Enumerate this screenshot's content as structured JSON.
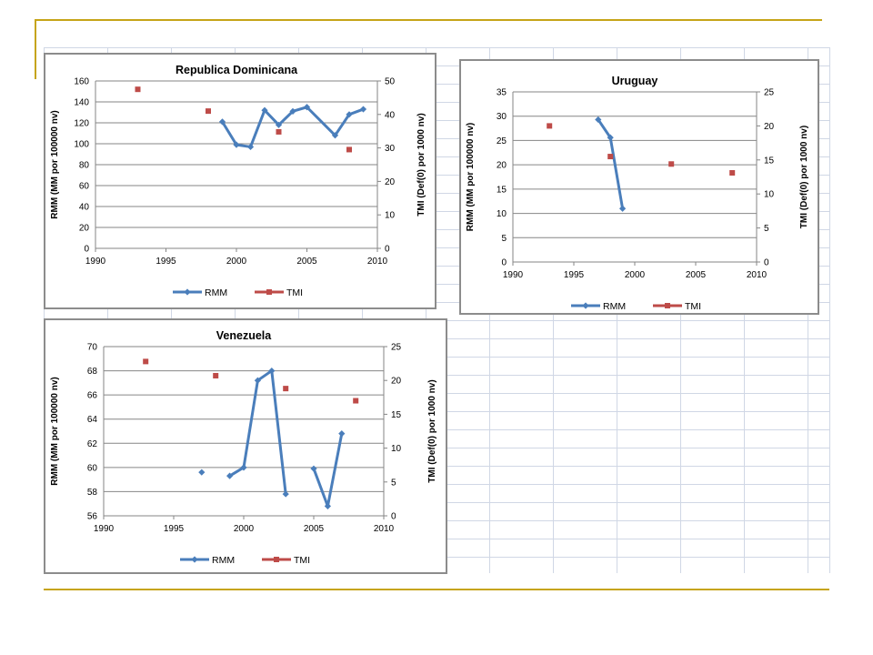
{
  "chart_data": [
    {
      "type": "line",
      "title": "Republica Dominicana",
      "ylabel": "RMM (MM por 100000 nv)",
      "y2label": "TMI (Def(0) por 1000 nv)",
      "xlim": [
        1990,
        2010
      ],
      "xticks": [
        1990,
        1995,
        2000,
        2005,
        2010
      ],
      "ylim": [
        0,
        160
      ],
      "yticks": [
        0,
        20,
        40,
        60,
        80,
        100,
        120,
        140,
        160
      ],
      "y2lim": [
        0,
        50
      ],
      "y2ticks": [
        0,
        10,
        20,
        30,
        40,
        50
      ],
      "legend_position": "bottom",
      "series": [
        {
          "name": "RMM",
          "axis": "left",
          "color": "#4a7ebb",
          "style": "line-diamond",
          "segments": [
            [
              [
                1999,
                121
              ],
              [
                2000,
                99
              ],
              [
                2001,
                97
              ],
              [
                2002,
                132
              ],
              [
                2003,
                118
              ],
              [
                2004,
                131
              ],
              [
                2005,
                135
              ],
              [
                2007,
                108
              ],
              [
                2008,
                128
              ],
              [
                2009,
                133
              ]
            ]
          ]
        },
        {
          "name": "TMI",
          "axis": "right",
          "color": "#be4b48",
          "style": "square-marker",
          "segments": [
            [
              [
                1993,
                47.5
              ]
            ],
            [
              [
                1998,
                41
              ]
            ],
            [
              [
                2003,
                34.8
              ]
            ],
            [
              [
                2008,
                29.5
              ]
            ]
          ]
        }
      ]
    },
    {
      "type": "line",
      "title": "Uruguay",
      "ylabel": "RMM  (MM por 100000 nv)",
      "y2label": "TMI (Def(0) por 1000 nv)",
      "xlim": [
        1990,
        2010
      ],
      "xticks": [
        1990,
        1995,
        2000,
        2005,
        2010
      ],
      "ylim": [
        0,
        35
      ],
      "yticks": [
        0,
        5,
        10,
        15,
        20,
        25,
        30,
        35
      ],
      "y2lim": [
        0,
        25
      ],
      "y2ticks": [
        0,
        5,
        10,
        15,
        20,
        25
      ],
      "legend_position": "bottom",
      "series": [
        {
          "name": "RMM",
          "axis": "left",
          "color": "#4a7ebb",
          "style": "line-diamond",
          "segments": [
            [
              [
                1997,
                29.3
              ],
              [
                1998,
                25.6
              ],
              [
                1999,
                11
              ]
            ]
          ]
        },
        {
          "name": "TMI",
          "axis": "right",
          "color": "#be4b48",
          "style": "square-marker",
          "segments": [
            [
              [
                1993,
                20
              ]
            ],
            [
              [
                1998,
                15.5
              ]
            ],
            [
              [
                2003,
                14.4
              ]
            ],
            [
              [
                2008,
                13.1
              ]
            ]
          ]
        }
      ]
    },
    {
      "type": "line",
      "title": "Venezuela",
      "ylabel": "RMM  (MM por 100000 nv)",
      "y2label": "TMI (Def(0) por 1000 nv)",
      "xlim": [
        1990,
        2010
      ],
      "xticks": [
        1990,
        1995,
        2000,
        2005,
        2010
      ],
      "ylim": [
        56,
        70
      ],
      "yticks": [
        56,
        58,
        60,
        62,
        64,
        66,
        68,
        70
      ],
      "y2lim": [
        0,
        25
      ],
      "y2ticks": [
        0,
        5,
        10,
        15,
        20,
        25
      ],
      "legend_position": "bottom",
      "series": [
        {
          "name": "RMM",
          "axis": "left",
          "color": "#4a7ebb",
          "style": "line-diamond",
          "segments": [
            [
              [
                1997,
                59.6
              ]
            ],
            [
              [
                1999,
                59.3
              ],
              [
                2000,
                60
              ],
              [
                2001,
                67.2
              ],
              [
                2002,
                68
              ],
              [
                2003,
                57.8
              ]
            ],
            [
              [
                2005,
                59.9
              ],
              [
                2006,
                56.8
              ],
              [
                2007,
                62.8
              ]
            ]
          ]
        },
        {
          "name": "TMI",
          "axis": "right",
          "color": "#be4b48",
          "style": "square-marker",
          "segments": [
            [
              [
                1993,
                22.8
              ]
            ],
            [
              [
                1998,
                20.7
              ]
            ],
            [
              [
                2003,
                18.8
              ]
            ],
            [
              [
                2008,
                17
              ]
            ]
          ]
        }
      ]
    }
  ]
}
